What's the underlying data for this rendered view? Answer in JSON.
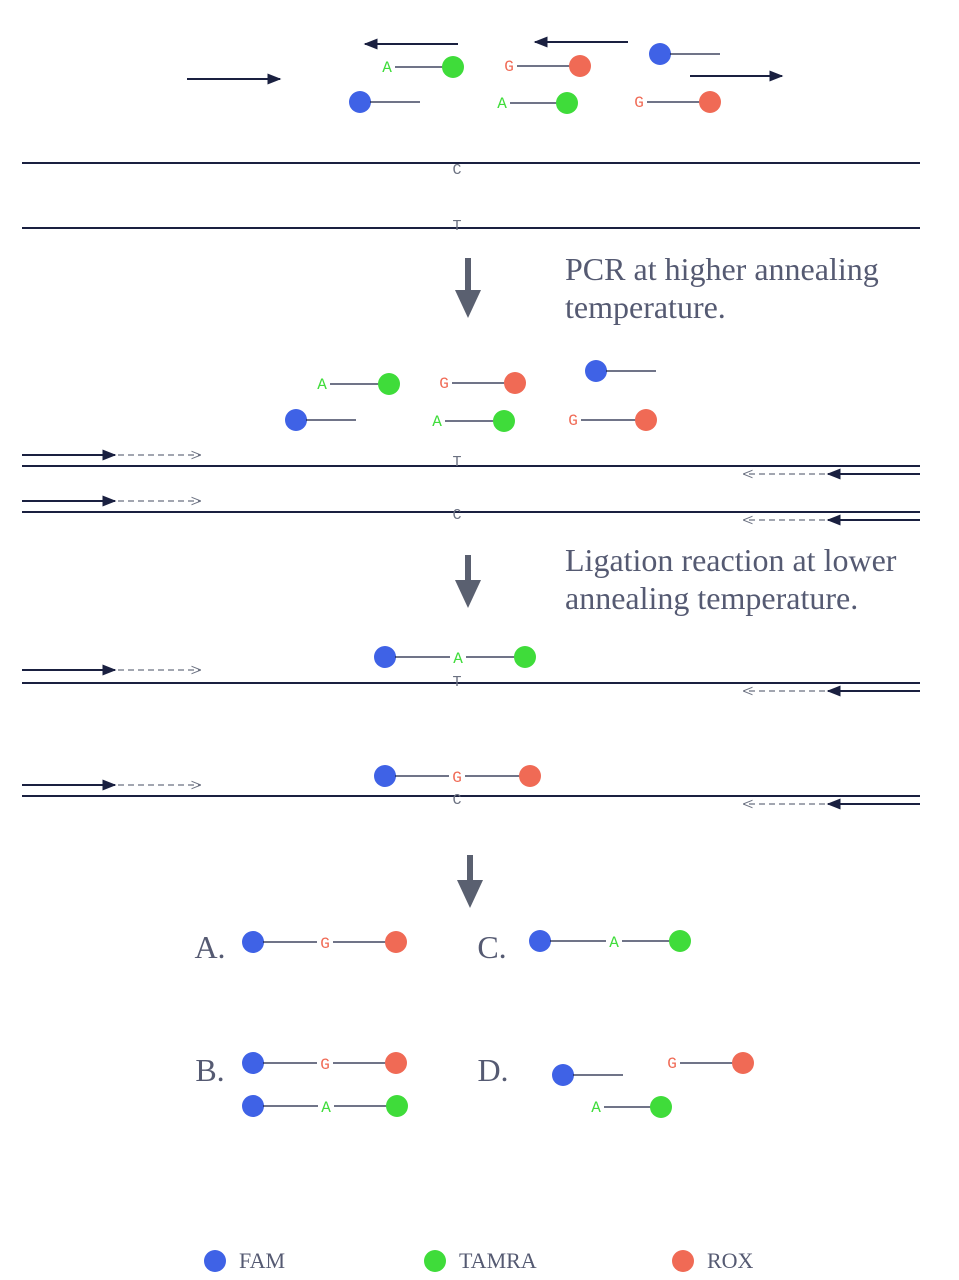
{
  "stage1": {
    "probe_alleles": [
      "A",
      "G",
      "A",
      "G"
    ],
    "strand_bases": [
      "C",
      "T"
    ]
  },
  "step1": [
    "PCR at higher annealing",
    "temperature."
  ],
  "stage2": {
    "probe_alleles": [
      "A",
      "G",
      "A",
      "G"
    ],
    "strand_bases": [
      "T",
      "C"
    ]
  },
  "step2": [
    "Ligation reaction at lower",
    "annealing temperature."
  ],
  "stage3": {
    "ligated_alleles": [
      "A",
      "G"
    ],
    "strand_bases": [
      "T",
      "C"
    ]
  },
  "results": [
    {
      "label": "A.",
      "alleles": [
        "G"
      ]
    },
    {
      "label": "B.",
      "alleles": [
        "G",
        "A"
      ]
    },
    {
      "label": "C.",
      "alleles": [
        "A"
      ]
    },
    {
      "label": "D.",
      "alleles": [
        "G",
        "A"
      ]
    }
  ],
  "legend": [
    {
      "name": "FAM",
      "color": "#3f62e6"
    },
    {
      "name": "TAMRA",
      "color": "#3fdc3a"
    },
    {
      "name": "ROX",
      "color": "#f06a55"
    }
  ]
}
